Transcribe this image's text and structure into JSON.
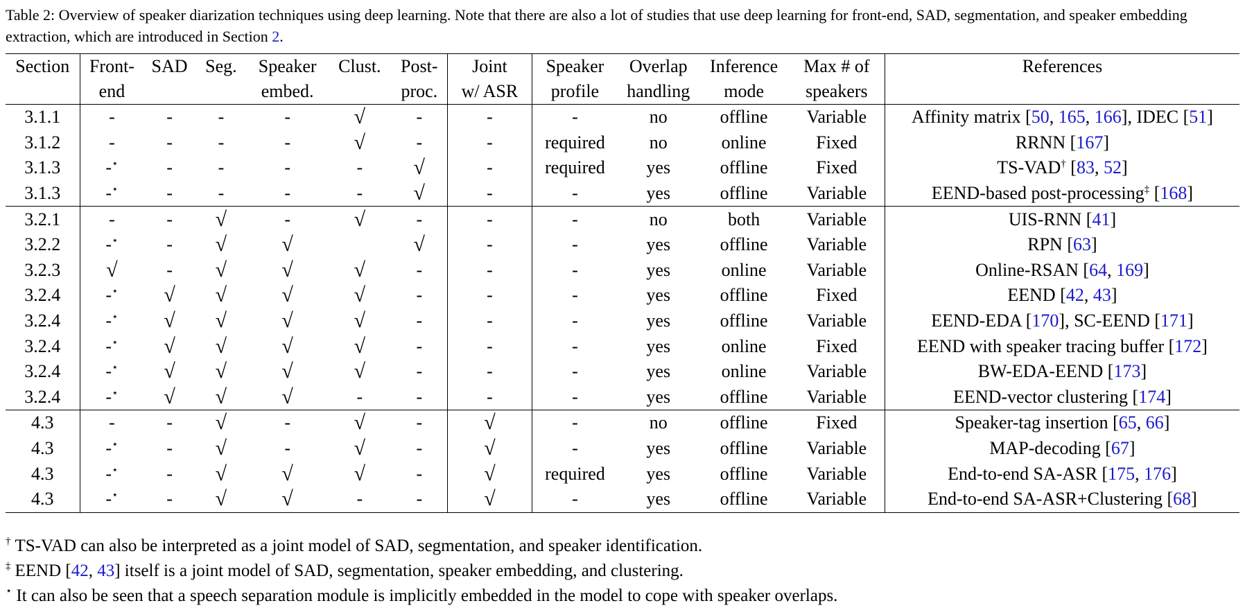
{
  "caption": {
    "label": "Table 2:",
    "text": "Overview of speaker diarization techniques using deep learning. Note that there are also a lot of studies that use deep learning for front-end, SAD, segmentation, and speaker embedding extraction, which are introduced in Section",
    "section_ref": "2",
    "end": "."
  },
  "header": {
    "row1": [
      "Section",
      "Front-",
      "SAD",
      "Seg.",
      "Speaker",
      "Clust.",
      "Post-",
      "Joint",
      "Speaker",
      "Overlap",
      "Inference",
      "Max # of",
      "References"
    ],
    "row2": [
      "",
      "end",
      "",
      "",
      "embed.",
      "",
      "proc.",
      "w/ ASR",
      "profile",
      "handling",
      "mode",
      "speakers",
      ""
    ]
  },
  "groups": [
    [
      {
        "cells": [
          "3.1.1",
          "-",
          "-",
          "-",
          "-",
          "√",
          "-",
          "-",
          "-",
          "no",
          "offline",
          "Variable"
        ],
        "ref": [
          {
            "t": "Affinity matrix ["
          },
          {
            "c": "50"
          },
          {
            "t": ", "
          },
          {
            "c": "165"
          },
          {
            "t": ", "
          },
          {
            "c": "166"
          },
          {
            "t": "], IDEC ["
          },
          {
            "c": "51"
          },
          {
            "t": "]"
          }
        ]
      },
      {
        "cells": [
          "3.1.2",
          "-",
          "-",
          "-",
          "-",
          "√",
          "-",
          "-",
          "required",
          "no",
          "online",
          "Fixed"
        ],
        "ref": [
          {
            "t": "RRNN ["
          },
          {
            "c": "167"
          },
          {
            "t": "]"
          }
        ]
      },
      {
        "cells": [
          "3.1.3",
          "-⋆",
          "-",
          "-",
          "-",
          "-",
          "√",
          "-",
          "required",
          "yes",
          "offline",
          "Fixed"
        ],
        "ref": [
          {
            "t": "TS-VAD"
          },
          {
            "s": "†"
          },
          {
            "t": " ["
          },
          {
            "c": "83"
          },
          {
            "t": ", "
          },
          {
            "c": "52"
          },
          {
            "t": "]"
          }
        ]
      },
      {
        "cells": [
          "3.1.3",
          "-⋆",
          "-",
          "-",
          "-",
          "-",
          "√",
          "-",
          "-",
          "yes",
          "offline",
          "Variable"
        ],
        "ref": [
          {
            "t": "EEND-based post-processing"
          },
          {
            "s": "‡"
          },
          {
            "t": " ["
          },
          {
            "c": "168"
          },
          {
            "t": "]"
          }
        ]
      }
    ],
    [
      {
        "cells": [
          "3.2.1",
          "-",
          "-",
          "√",
          "-",
          "√",
          "-",
          "-",
          "-",
          "no",
          "both",
          "Variable"
        ],
        "ref": [
          {
            "t": "UIS-RNN ["
          },
          {
            "c": "41"
          },
          {
            "t": "]"
          }
        ]
      },
      {
        "cells": [
          "3.2.2",
          "-⋆",
          "-",
          "√",
          "√",
          "",
          "√",
          "-",
          "-",
          "yes",
          "offline",
          "Variable"
        ],
        "ref": [
          {
            "t": "RPN ["
          },
          {
            "c": "63"
          },
          {
            "t": "]"
          }
        ]
      },
      {
        "cells": [
          "3.2.3",
          "√",
          "-",
          "√",
          "√",
          "√",
          "-",
          "-",
          "-",
          "yes",
          "online",
          "Variable"
        ],
        "ref": [
          {
            "t": "Online-RSAN ["
          },
          {
            "c": "64"
          },
          {
            "t": ", "
          },
          {
            "c": "169"
          },
          {
            "t": "]"
          }
        ]
      },
      {
        "cells": [
          "3.2.4",
          "-⋆",
          "√",
          "√",
          "√",
          "√",
          "-",
          "-",
          "-",
          "yes",
          "offline",
          "Fixed"
        ],
        "ref": [
          {
            "t": "EEND ["
          },
          {
            "c": "42"
          },
          {
            "t": ", "
          },
          {
            "c": "43"
          },
          {
            "t": "]"
          }
        ]
      },
      {
        "cells": [
          "3.2.4",
          "-⋆",
          "√",
          "√",
          "√",
          "√",
          "-",
          "-",
          "-",
          "yes",
          "offline",
          "Variable"
        ],
        "ref": [
          {
            "t": "EEND-EDA ["
          },
          {
            "c": "170"
          },
          {
            "t": "], SC-EEND ["
          },
          {
            "c": "171"
          },
          {
            "t": "]"
          }
        ]
      },
      {
        "cells": [
          "3.2.4",
          "-⋆",
          "√",
          "√",
          "√",
          "√",
          "-",
          "-",
          "-",
          "yes",
          "online",
          "Fixed"
        ],
        "ref": [
          {
            "t": "EEND with speaker tracing buffer ["
          },
          {
            "c": "172"
          },
          {
            "t": "]"
          }
        ]
      },
      {
        "cells": [
          "3.2.4",
          "-⋆",
          "√",
          "√",
          "√",
          "√",
          "-",
          "-",
          "-",
          "yes",
          "online",
          "Variable"
        ],
        "ref": [
          {
            "t": "BW-EDA-EEND ["
          },
          {
            "c": "173"
          },
          {
            "t": "]"
          }
        ]
      },
      {
        "cells": [
          "3.2.4",
          "-⋆",
          "√",
          "√",
          "√",
          "-",
          "-",
          "-",
          "-",
          "yes",
          "offline",
          "Variable"
        ],
        "ref": [
          {
            "t": "EEND-vector clustering ["
          },
          {
            "c": "174"
          },
          {
            "t": "]"
          }
        ]
      }
    ],
    [
      {
        "cells": [
          "4.3",
          "-",
          "-",
          "√",
          "-",
          "√",
          "-",
          "√",
          "-",
          "no",
          "offline",
          "Fixed"
        ],
        "ref": [
          {
            "t": "Speaker-tag insertion ["
          },
          {
            "c": "65"
          },
          {
            "t": ", "
          },
          {
            "c": "66"
          },
          {
            "t": "]"
          }
        ]
      },
      {
        "cells": [
          "4.3",
          "-⋆",
          "-",
          "√",
          "-",
          "√",
          "-",
          "√",
          "-",
          "yes",
          "offline",
          "Variable"
        ],
        "ref": [
          {
            "t": "MAP-decoding ["
          },
          {
            "c": "67"
          },
          {
            "t": "]"
          }
        ]
      },
      {
        "cells": [
          "4.3",
          "-⋆",
          "-",
          "√",
          "√",
          "√",
          "-",
          "√",
          "required",
          "yes",
          "offline",
          "Variable"
        ],
        "ref": [
          {
            "t": "End-to-end SA-ASR ["
          },
          {
            "c": "175"
          },
          {
            "t": ", "
          },
          {
            "c": "176"
          },
          {
            "t": "]"
          }
        ]
      },
      {
        "cells": [
          "4.3",
          "-⋆",
          "-",
          "√",
          "√",
          "-",
          "-",
          "√",
          "-",
          "yes",
          "offline",
          "Variable"
        ],
        "ref": [
          {
            "t": "End-to-end SA-ASR+Clustering ["
          },
          {
            "c": "68"
          },
          {
            "t": "]"
          }
        ]
      }
    ]
  ],
  "footnotes": [
    {
      "mark": "†",
      "parts": [
        {
          "t": "TS-VAD can also be interpreted as a joint model of SAD, segmentation, and speaker identification."
        }
      ]
    },
    {
      "mark": "‡",
      "parts": [
        {
          "t": "EEND ["
        },
        {
          "c": "42"
        },
        {
          "t": ", "
        },
        {
          "c": "43"
        },
        {
          "t": "] itself is a joint model of SAD, segmentation, speaker embedding, and clustering."
        }
      ]
    },
    {
      "mark": "⋆",
      "parts": [
        {
          "t": "It can also be seen that a speech separation module is implicitly embedded in the model to cope with speaker overlaps."
        }
      ]
    }
  ],
  "colors": {
    "citation": "#1a1acc",
    "rule": "#000000"
  }
}
